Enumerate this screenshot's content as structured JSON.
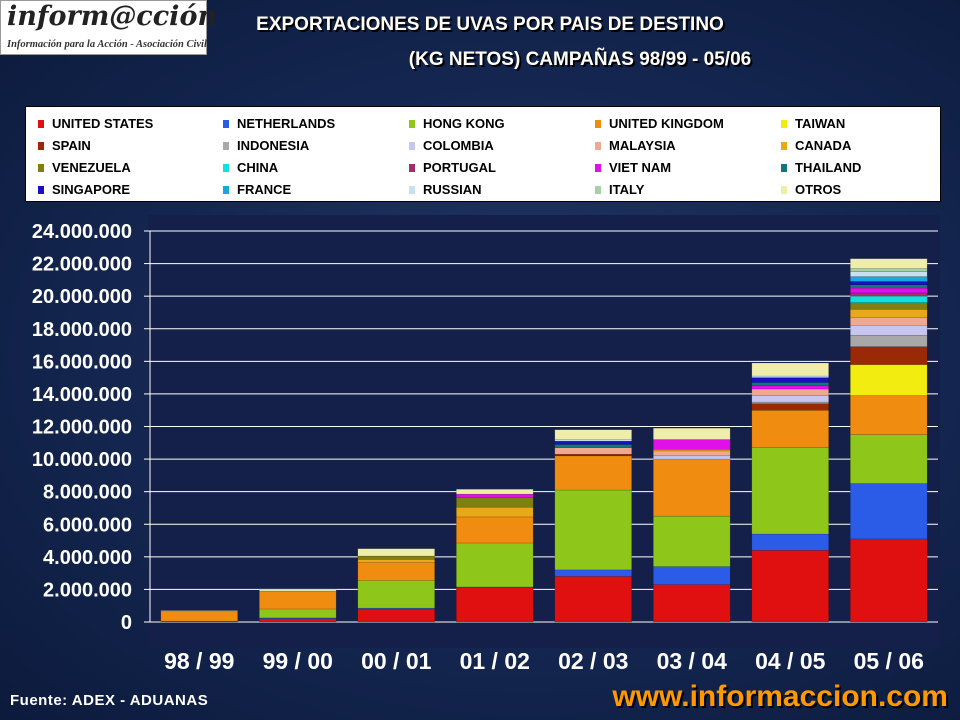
{
  "logo": {
    "brand": "inform@cción",
    "tagline": "Información para la Acción - Asociación Civil"
  },
  "title_line1": "EXPORTACIONES DE UVAS POR PAIS DE  DESTINO",
  "title_line2": "(KG NETOS) CAMPAÑAS 98/99 - 05/06",
  "source": "Fuente: ADEX - ADUANAS",
  "url": "www.informaccion.com",
  "chart_data": {
    "type": "bar",
    "stacked": true,
    "title": "EXPORTACIONES DE UVAS POR PAIS DE  DESTINO (KG NETOS) CAMPAÑAS 98/99 - 05/06",
    "xlabel": "",
    "ylabel": "",
    "ylim": [
      0,
      24000000
    ],
    "yticks": [
      0,
      2000000,
      4000000,
      6000000,
      8000000,
      10000000,
      12000000,
      14000000,
      16000000,
      18000000,
      20000000,
      22000000,
      24000000
    ],
    "ytick_labels": [
      "0",
      "2.000.000",
      "4.000.000",
      "6.000.000",
      "8.000.000",
      "10.000.000",
      "12.000.000",
      "14.000.000",
      "16.000.000",
      "18.000.000",
      "20.000.000",
      "22.000.000",
      "24.000.000"
    ],
    "grid": "horizontal",
    "legend_position": "top",
    "categories": [
      "98 / 99",
      "99 / 00",
      "00 / 01",
      "01 / 02",
      "02 / 03",
      "03 / 04",
      "04 / 05",
      "05 / 06"
    ],
    "series": [
      {
        "name": "UNITED STATES",
        "color": "#e01010",
        "values": [
          0,
          200000,
          800000,
          2100000,
          2800000,
          2300000,
          4400000,
          5100000
        ]
      },
      {
        "name": "NETHERLANDS",
        "color": "#2a5ce8",
        "values": [
          50000,
          50000,
          50000,
          50000,
          400000,
          1100000,
          1000000,
          3400000
        ]
      },
      {
        "name": "HONG KONG",
        "color": "#8ec61a",
        "values": [
          0,
          550000,
          1700000,
          2700000,
          4900000,
          3100000,
          5300000,
          3000000
        ]
      },
      {
        "name": "UNITED KINGDOM",
        "color": "#f08c10",
        "values": [
          600000,
          1100000,
          1100000,
          1600000,
          2100000,
          3500000,
          2300000,
          2400000
        ]
      },
      {
        "name": "TAIWAN",
        "color": "#f2ec10",
        "values": [
          0,
          0,
          0,
          0,
          0,
          0,
          0,
          1900000
        ]
      },
      {
        "name": "SPAIN",
        "color": "#9a2a06",
        "values": [
          0,
          0,
          0,
          0,
          100000,
          0,
          400000,
          1100000
        ]
      },
      {
        "name": "INDONESIA",
        "color": "#a8a8a8",
        "values": [
          0,
          0,
          0,
          0,
          0,
          0,
          100000,
          700000
        ]
      },
      {
        "name": "COLOMBIA",
        "color": "#c6c6f0",
        "values": [
          0,
          0,
          0,
          0,
          0,
          200000,
          400000,
          600000
        ]
      },
      {
        "name": "MALAYSIA",
        "color": "#f0a890",
        "values": [
          0,
          0,
          0,
          0,
          400000,
          300000,
          400000,
          500000
        ]
      },
      {
        "name": "CANADA",
        "color": "#e8a818",
        "values": [
          0,
          0,
          200000,
          600000,
          0,
          100000,
          0,
          500000
        ]
      },
      {
        "name": "VENEZUELA",
        "color": "#808010",
        "values": [
          0,
          0,
          200000,
          600000,
          0,
          0,
          0,
          400000
        ]
      },
      {
        "name": "CHINA",
        "color": "#10e0e0",
        "values": [
          0,
          0,
          0,
          0,
          0,
          0,
          0,
          400000
        ]
      },
      {
        "name": "PORTUGAL",
        "color": "#a0306a",
        "values": [
          0,
          0,
          0,
          0,
          0,
          0,
          0,
          200000
        ]
      },
      {
        "name": "VIET NAM",
        "color": "#e010e8",
        "values": [
          0,
          0,
          0,
          200000,
          0,
          600000,
          200000,
          300000
        ]
      },
      {
        "name": "THAILAND",
        "color": "#107878",
        "values": [
          0,
          0,
          0,
          0,
          200000,
          0,
          200000,
          200000
        ]
      },
      {
        "name": "SINGAPORE",
        "color": "#1a10c0",
        "values": [
          0,
          0,
          0,
          0,
          200000,
          0,
          300000,
          200000
        ]
      },
      {
        "name": "FRANCE",
        "color": "#18a8e0",
        "values": [
          0,
          0,
          0,
          0,
          0,
          0,
          0,
          300000
        ]
      },
      {
        "name": "RUSSIAN",
        "color": "#c8e0f0",
        "values": [
          0,
          0,
          0,
          0,
          100000,
          0,
          100000,
          300000
        ]
      },
      {
        "name": "ITALY",
        "color": "#a8d0a8",
        "values": [
          0,
          0,
          0,
          0,
          0,
          0,
          0,
          200000
        ]
      },
      {
        "name": "OTROS",
        "color": "#eeeeaa",
        "values": [
          50000,
          100000,
          450000,
          300000,
          600000,
          700000,
          800000,
          600000
        ]
      }
    ]
  }
}
